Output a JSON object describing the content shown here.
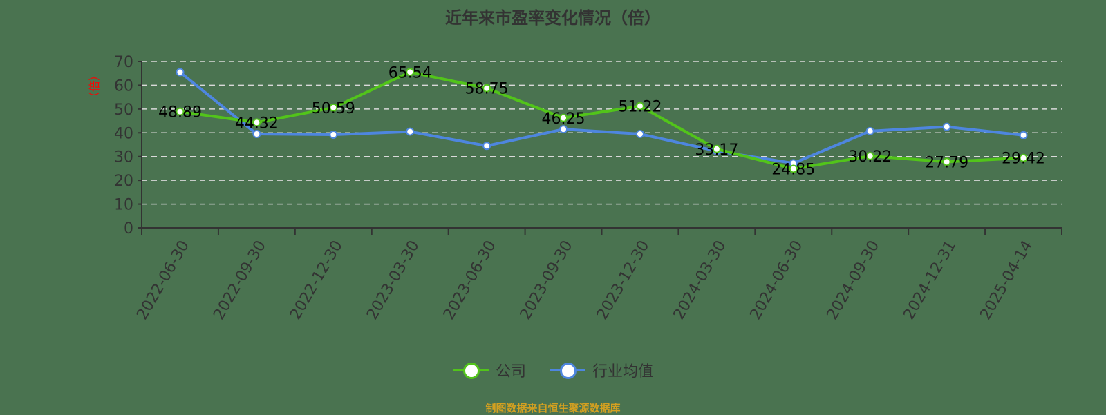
{
  "title": "近年来市盈率变化情况（倍）",
  "source": "制图数据来自恒生聚源数据库",
  "legend": [
    {
      "name": "公司",
      "color": "#52c41a"
    },
    {
      "name": "行业均值",
      "color": "#4e86df"
    }
  ],
  "colors": {
    "background": "#4a7350",
    "company": "#52c41a",
    "industry": "#4e86df",
    "grid": "#d9d9d9",
    "axis": "#333333",
    "ylabel": "#ff0000",
    "source": "#d4a020"
  },
  "chart_data": {
    "type": "line",
    "title": "近年来市盈率变化情况（倍）",
    "xlabel": "",
    "ylabel": "倍",
    "ylim": [
      0,
      70
    ],
    "yticks": [
      0,
      10,
      20,
      30,
      40,
      50,
      60,
      70
    ],
    "grid": true,
    "legend_position": "bottom",
    "categories": [
      "2022-06-30",
      "2022-09-30",
      "2022-12-30",
      "2023-03-30",
      "2023-06-30",
      "2023-09-30",
      "2023-12-30",
      "2024-03-30",
      "2024-06-30",
      "2024-09-30",
      "2024-12-31",
      "2025-04-14"
    ],
    "series": [
      {
        "name": "公司",
        "values": [
          48.89,
          44.32,
          50.59,
          65.54,
          58.75,
          46.25,
          51.22,
          33.17,
          24.85,
          30.22,
          27.79,
          29.42
        ],
        "labels": [
          "48.89",
          "44.32",
          "50.59",
          "65.54",
          "58.75",
          "46.25",
          "51.22",
          "33.17",
          "24.85",
          "30.22",
          "27.79",
          "29.42"
        ]
      },
      {
        "name": "行业均值",
        "values": [
          65.5,
          39.5,
          39.2,
          40.5,
          34.5,
          41.5,
          39.5,
          32.3,
          27.2,
          40.7,
          42.5,
          39.0
        ]
      }
    ]
  }
}
